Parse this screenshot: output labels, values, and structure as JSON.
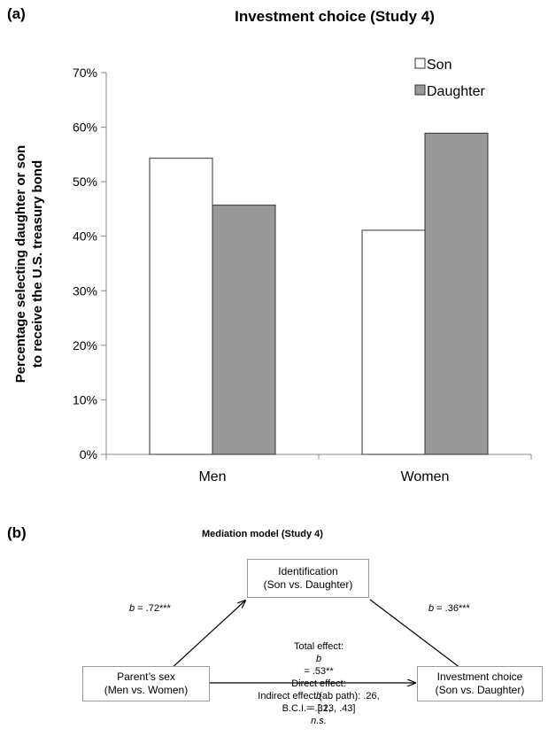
{
  "panel_a_label": "(a)",
  "panel_b_label": "(b)",
  "chart_data": {
    "type": "bar",
    "title": "Investment choice (Study 4)",
    "ylabel_line1": "Percentage selecting daughter or son",
    "ylabel_line2": "to receive the U.S. treasury bond",
    "xlabel": "",
    "categories": [
      "Men",
      "Women"
    ],
    "series": [
      {
        "name": "Son",
        "values": [
          54.3,
          41.1
        ],
        "color": "#ffffff"
      },
      {
        "name": "Daughter",
        "values": [
          45.7,
          58.9
        ],
        "color": "#999999"
      }
    ],
    "ylim": [
      0,
      70
    ],
    "yticks": [
      "0%",
      "10%",
      "20%",
      "30%",
      "40%",
      "50%",
      "60%",
      "70%"
    ],
    "grid": false,
    "legend": "top-right"
  },
  "mediation": {
    "title": "Mediation model (Study 4)",
    "mediator": {
      "line1": "Identification",
      "line2": "(Son vs. Daughter)"
    },
    "predictor": {
      "line1": "Parent’s sex",
      "line2": "(Men vs. Women)"
    },
    "outcome": {
      "line1": "Investment choice",
      "line2": "(Son vs. Daughter)"
    },
    "path_a": {
      "b": "b",
      "rest": " = .72***"
    },
    "path_b": {
      "b": "b",
      "rest": " = .36***"
    },
    "total_effect": {
      "pre": "Total effect: ",
      "b": "b",
      "rest": " = .53**"
    },
    "direct_effect": {
      "pre": "Direct effect: ",
      "b": "b",
      "rest": " = .32, ",
      "ns": "n.s."
    },
    "indirect_line1": "Indirect effect (ab path): .26,",
    "indirect_line2": "B.C.I. = [.13, .43]"
  }
}
